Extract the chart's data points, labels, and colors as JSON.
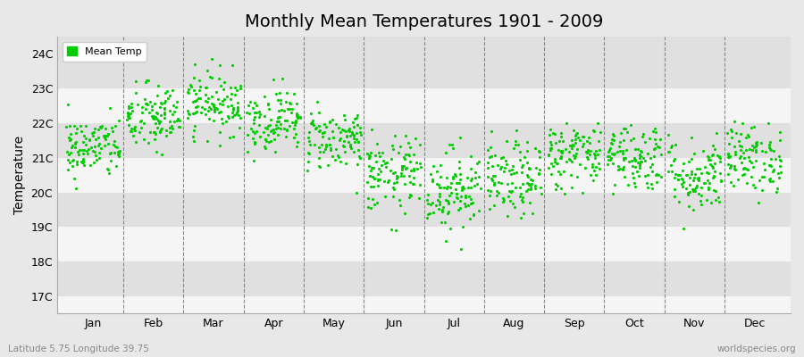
{
  "title": "Monthly Mean Temperatures 1901 - 2009",
  "ylabel": "Temperature",
  "xlabel_labels": [
    "Jan",
    "Feb",
    "Mar",
    "Apr",
    "May",
    "Jun",
    "Jul",
    "Aug",
    "Sep",
    "Oct",
    "Nov",
    "Dec"
  ],
  "subtitle_left": "Latitude 5.75 Longitude 39.75",
  "subtitle_right": "worldspecies.org",
  "ytick_labels": [
    "17C",
    "18C",
    "19C",
    "20C",
    "21C",
    "22C",
    "23C",
    "24C"
  ],
  "ytick_values": [
    17,
    18,
    19,
    20,
    21,
    22,
    23,
    24
  ],
  "ylim": [
    16.5,
    24.5
  ],
  "dot_color": "#00cc00",
  "background_color": "#e8e8e8",
  "plot_bg_color": "#f5f5f5",
  "band_color_dark": "#e0e0e0",
  "band_color_light": "#f5f5f5",
  "legend_label": "Mean Temp",
  "num_years": 109,
  "month_means": [
    21.3,
    22.15,
    22.6,
    22.1,
    21.55,
    20.5,
    20.1,
    20.35,
    21.1,
    21.05,
    20.5,
    21.0
  ],
  "month_stds": [
    0.45,
    0.5,
    0.45,
    0.45,
    0.45,
    0.55,
    0.6,
    0.55,
    0.5,
    0.5,
    0.55,
    0.5
  ],
  "seed": 42
}
